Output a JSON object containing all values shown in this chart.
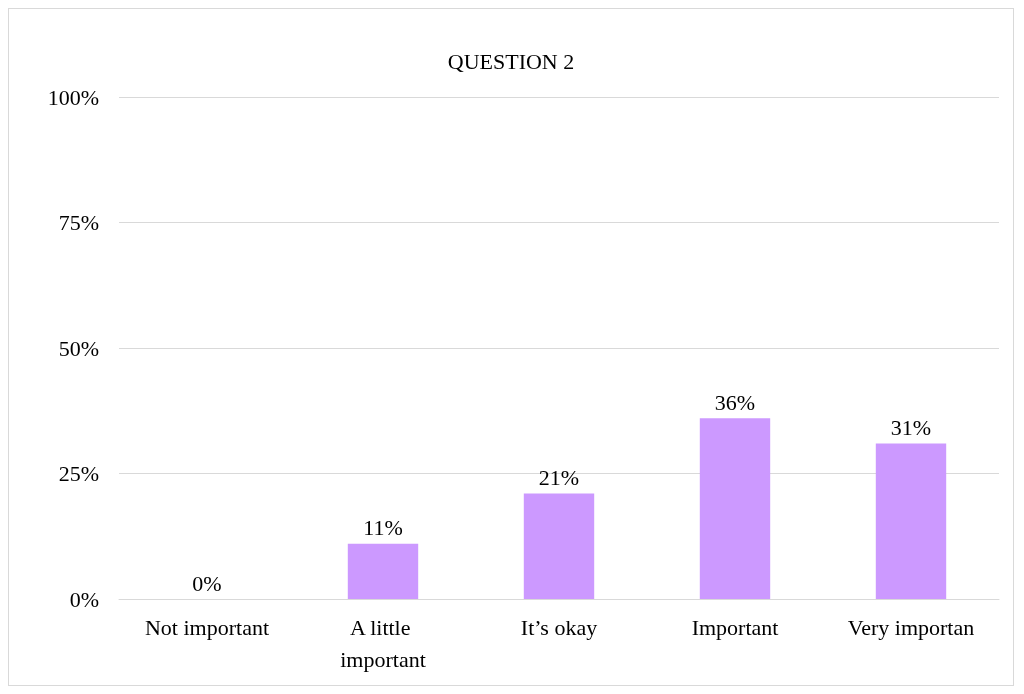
{
  "chart_data": {
    "type": "bar",
    "title": "QUESTION 2",
    "categories": [
      "Not important",
      "A little important",
      "It’s okay",
      "Important",
      "Very importan"
    ],
    "values": [
      0,
      11,
      21,
      36,
      31
    ],
    "value_labels": [
      "0%",
      "11%",
      "21%",
      "36%",
      "31%"
    ],
    "color": "#cc99ff",
    "ylim": [
      0,
      100
    ],
    "yticks": [
      {
        "value": 0,
        "label": "0%"
      },
      {
        "value": 25,
        "label": "25%"
      },
      {
        "value": 50,
        "label": "50%"
      },
      {
        "value": 75,
        "label": "75%"
      },
      {
        "value": 100,
        "label": "100%"
      }
    ],
    "grid": "y"
  }
}
